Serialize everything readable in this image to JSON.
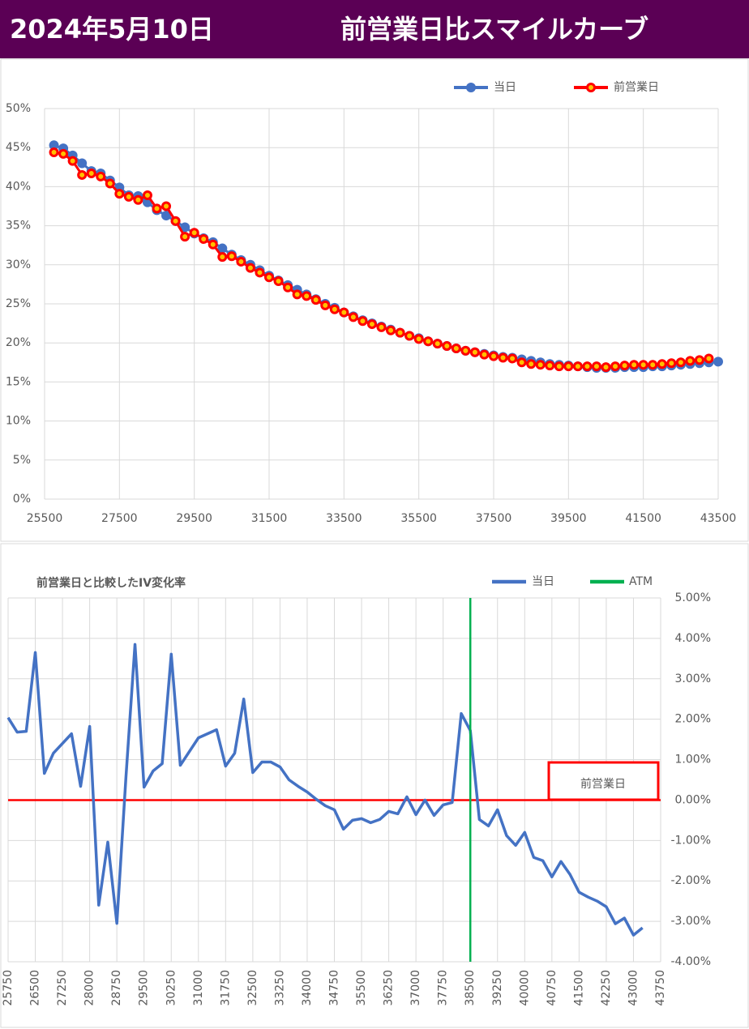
{
  "header": {
    "date": "2024年5月10日",
    "title": "前営業日比スマイルカーブ"
  },
  "chart_data": [
    {
      "type": "line",
      "markers": true,
      "legend": "top",
      "x": [
        25750,
        26000,
        26250,
        26500,
        26750,
        27000,
        27250,
        27500,
        27750,
        28000,
        28250,
        28500,
        28750,
        29000,
        29250,
        29500,
        29750,
        30000,
        30250,
        30500,
        30750,
        31000,
        31250,
        31500,
        31750,
        32000,
        32250,
        32500,
        32750,
        33000,
        33250,
        33500,
        33750,
        34000,
        34250,
        34500,
        34750,
        35000,
        35250,
        35500,
        35750,
        36000,
        36250,
        36500,
        36750,
        37000,
        37250,
        37500,
        37750,
        38000,
        38250,
        38500,
        38750,
        39000,
        39250,
        39500,
        39750,
        40000,
        40250,
        40500,
        40750,
        41000,
        41250,
        41500,
        41750,
        42000,
        42250,
        42500,
        42750,
        43000,
        43250,
        43500
      ],
      "series": [
        {
          "name": "当日",
          "color": "#4472c4",
          "values": [
            45.3,
            44.9,
            44.0,
            43.0,
            42.0,
            41.7,
            40.8,
            39.9,
            38.9,
            38.8,
            38.0,
            37.0,
            36.3,
            35.6,
            34.8,
            34.0,
            33.4,
            32.9,
            32.1,
            31.3,
            30.6,
            30.0,
            29.3,
            28.6,
            28.0,
            27.4,
            26.8,
            26.2,
            25.6,
            25.0,
            24.5,
            23.9,
            23.4,
            22.9,
            22.5,
            22.1,
            21.7,
            21.3,
            20.9,
            20.6,
            20.2,
            19.9,
            19.6,
            19.3,
            19.0,
            18.8,
            18.6,
            18.4,
            18.2,
            18.1,
            17.9,
            17.7,
            17.5,
            17.3,
            17.2,
            17.1,
            17.0,
            16.9,
            16.8,
            16.8,
            16.8,
            16.9,
            16.9,
            16.9,
            17.0,
            17.0,
            17.1,
            17.2,
            17.3,
            17.4,
            17.5,
            17.6
          ]
        },
        {
          "name": "前営業日",
          "color": "#ff0000",
          "marker_fill": "#ffc000",
          "values": [
            44.4,
            44.2,
            43.3,
            41.5,
            41.7,
            41.3,
            40.4,
            39.1,
            38.7,
            38.3,
            38.9,
            37.2,
            37.5,
            35.6,
            33.6,
            34.1,
            33.3,
            32.6,
            31.0,
            31.1,
            30.4,
            29.6,
            29.0,
            28.4,
            27.9,
            27.1,
            26.2,
            26.0,
            25.5,
            24.8,
            24.3,
            23.9,
            23.3,
            22.8,
            22.4,
            22.0,
            21.6,
            21.3,
            20.9,
            20.5,
            20.2,
            19.9,
            19.6,
            19.3,
            19.0,
            18.8,
            18.5,
            18.3,
            18.1,
            18.0,
            17.5,
            17.3,
            17.2,
            17.1,
            17.0,
            17.0,
            17.0,
            17.0,
            17.0,
            16.9,
            17.0,
            17.1,
            17.2,
            17.2,
            17.2,
            17.3,
            17.4,
            17.5,
            17.7,
            17.8,
            18.0,
            null
          ]
        }
      ],
      "xlim": [
        25500,
        43500
      ],
      "xticks": [
        25500,
        27500,
        29500,
        31500,
        33500,
        35500,
        37500,
        39500,
        41500,
        43500
      ],
      "ylim": [
        0,
        50
      ],
      "yticks": [
        {
          "value": 0,
          "label": "0%"
        },
        {
          "value": 5,
          "label": "5%"
        },
        {
          "value": 10,
          "label": "10%"
        },
        {
          "value": 15,
          "label": "15%"
        },
        {
          "value": 20,
          "label": "20%"
        },
        {
          "value": 25,
          "label": "25%"
        },
        {
          "value": 30,
          "label": "30%"
        },
        {
          "value": 35,
          "label": "35%"
        },
        {
          "value": 40,
          "label": "40%"
        },
        {
          "value": 45,
          "label": "45%"
        },
        {
          "value": 50,
          "label": "50%"
        }
      ],
      "grid": true
    },
    {
      "type": "line",
      "markers": false,
      "title": "前営業日と比較したIV変化率",
      "yaxis_position": "right",
      "xtick_rotation": -90,
      "x": [
        25750,
        26000,
        26250,
        26500,
        26750,
        27000,
        27250,
        27500,
        27750,
        28000,
        28250,
        28500,
        28750,
        29000,
        29250,
        29500,
        29750,
        30000,
        30250,
        30500,
        30750,
        31000,
        31250,
        31500,
        31750,
        32000,
        32250,
        32500,
        32750,
        33000,
        33250,
        33500,
        33750,
        34000,
        34250,
        34500,
        34750,
        35000,
        35250,
        35500,
        35750,
        36000,
        36250,
        36500,
        36750,
        37000,
        37250,
        37500,
        37750,
        38000,
        38250,
        38500,
        38750,
        39000,
        39250,
        39500,
        39750,
        40000,
        40250,
        40500,
        40750,
        41000,
        41250,
        41500,
        41750,
        42000,
        42250,
        42500,
        42750,
        43000,
        43250
      ],
      "series": [
        {
          "name": "当日",
          "color": "#4472c4",
          "values": [
            2.04,
            1.68,
            1.7,
            3.65,
            0.66,
            1.16,
            1.4,
            1.64,
            0.34,
            1.82,
            -2.6,
            -1.04,
            -3.05,
            0.56,
            3.85,
            0.32,
            0.72,
            0.9,
            3.61,
            0.86,
            1.2,
            1.54,
            1.64,
            1.74,
            0.84,
            1.16,
            2.5,
            0.68,
            0.94,
            0.94,
            0.82,
            0.5,
            0.34,
            0.2,
            0.02,
            -0.14,
            -0.24,
            -0.72,
            -0.5,
            -0.46,
            -0.56,
            -0.48,
            -0.28,
            -0.34,
            0.08,
            -0.36,
            0.0,
            -0.38,
            -0.12,
            -0.06,
            2.14,
            1.72,
            -0.48,
            -0.64,
            -0.24,
            -0.88,
            -1.12,
            -0.8,
            -1.42,
            -1.5,
            -1.9,
            -1.52,
            -1.84,
            -2.28,
            -2.4,
            -2.5,
            -2.64,
            -3.06,
            -2.92,
            -3.34,
            -3.16
          ]
        }
      ],
      "reference_line": {
        "value": 0,
        "label": "前営業日",
        "color": "#ff0000"
      },
      "vline": {
        "name": "ATM",
        "x": 38500,
        "color": "#00b050"
      },
      "xlim": [
        25750,
        43750
      ],
      "xticks": [
        25750,
        26500,
        27250,
        28000,
        28750,
        29500,
        30250,
        31000,
        31750,
        32500,
        33250,
        34000,
        34750,
        35500,
        36250,
        37000,
        37750,
        38500,
        39250,
        40000,
        40750,
        41500,
        42250,
        43000,
        43750
      ],
      "ylim": [
        -4,
        5
      ],
      "yticks": [
        {
          "value": -4,
          "label": "-4.00%"
        },
        {
          "value": -3,
          "label": "-3.00%"
        },
        {
          "value": -2,
          "label": "-2.00%"
        },
        {
          "value": -1,
          "label": "-1.00%"
        },
        {
          "value": 0,
          "label": "0.00%"
        },
        {
          "value": 1,
          "label": "1.00%"
        },
        {
          "value": 2,
          "label": "2.00%"
        },
        {
          "value": 3,
          "label": "3.00%"
        },
        {
          "value": 4,
          "label": "4.00%"
        },
        {
          "value": 5,
          "label": "5.00%"
        }
      ],
      "grid": true
    }
  ]
}
